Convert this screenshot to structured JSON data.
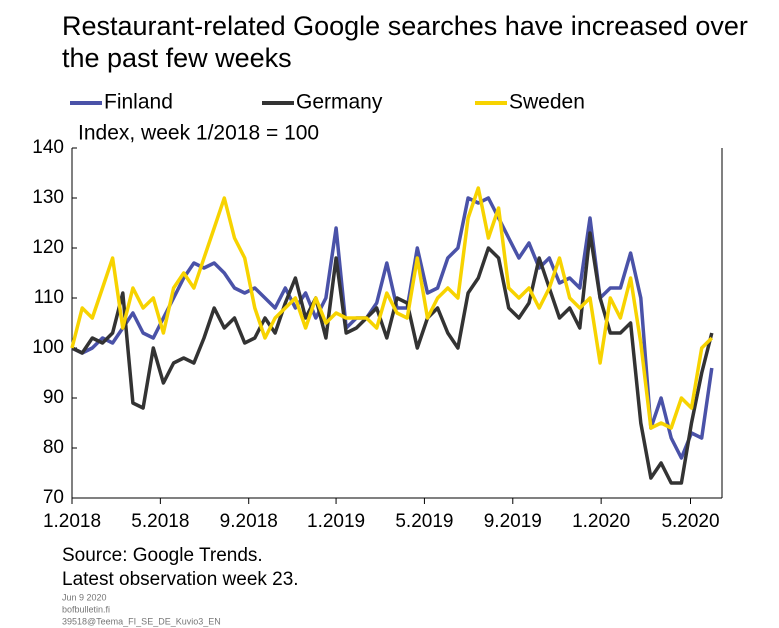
{
  "chart_data": {
    "type": "line",
    "title": "Restaurant-related Google searches have increased over the past few weeks",
    "subtitle": "Index, week 1/2018 = 100",
    "source": "Source: Google Trends.",
    "note": "Latest observation week 23.",
    "date": "Jun 9 2020",
    "site": "bofbulletin.fi",
    "code": "39518@Teema_FI_SE_DE_Kuvio3_EN",
    "ylim": [
      70,
      140
    ],
    "yticks": [
      70,
      80,
      90,
      100,
      110,
      120,
      130,
      140
    ],
    "xlim": [
      0,
      64
    ],
    "xticks": [
      {
        "value": 0,
        "label": "1.2018"
      },
      {
        "value": 8.7,
        "label": "5.2018"
      },
      {
        "value": 17.4,
        "label": "9.2018"
      },
      {
        "value": 26,
        "label": "1.2019"
      },
      {
        "value": 34.7,
        "label": "5.2019"
      },
      {
        "value": 43.4,
        "label": "9.2019"
      },
      {
        "value": 52.1,
        "label": "1.2020"
      },
      {
        "value": 60.9,
        "label": "5.2020"
      }
    ],
    "series": [
      {
        "name": "Finland",
        "color": "#4a52a8",
        "values": [
          100,
          99,
          100,
          102,
          101,
          104,
          107,
          103,
          102,
          106,
          110,
          114,
          117,
          116,
          117,
          115,
          112,
          111,
          112,
          110,
          108,
          112,
          108,
          111,
          106,
          110,
          124,
          104,
          106,
          106,
          109,
          117,
          108,
          108,
          120,
          111,
          112,
          118,
          120,
          130,
          129,
          130,
          126,
          122,
          118,
          121,
          116,
          118,
          113,
          114,
          112,
          126,
          110,
          112,
          112,
          119,
          110,
          84,
          90,
          82,
          78,
          83,
          82,
          96
        ]
      },
      {
        "name": "Germany",
        "color": "#333333",
        "values": [
          100,
          99,
          102,
          101,
          103,
          111,
          89,
          88,
          100,
          93,
          97,
          98,
          97,
          102,
          108,
          104,
          106,
          101,
          102,
          106,
          103,
          109,
          114,
          106,
          110,
          102,
          118,
          103,
          104,
          106,
          108,
          102,
          110,
          109,
          100,
          106,
          108,
          103,
          100,
          111,
          114,
          120,
          118,
          108,
          106,
          109,
          118,
          112,
          106,
          108,
          104,
          123,
          110,
          103,
          103,
          105,
          85,
          74,
          77,
          73,
          73,
          85,
          95,
          103
        ]
      },
      {
        "name": "Sweden",
        "color": "#f7d300",
        "values": [
          100,
          108,
          106,
          112,
          118,
          104,
          112,
          108,
          110,
          103,
          112,
          115,
          112,
          118,
          124,
          130,
          122,
          118,
          108,
          102,
          106,
          108,
          110,
          104,
          110,
          105,
          107,
          106,
          106,
          106,
          104,
          111,
          107,
          106,
          118,
          106,
          110,
          112,
          110,
          126,
          132,
          122,
          128,
          112,
          110,
          112,
          108,
          112,
          118,
          110,
          108,
          110,
          97,
          110,
          106,
          114,
          101,
          84,
          85,
          84,
          90,
          88,
          100,
          102
        ]
      }
    ]
  }
}
